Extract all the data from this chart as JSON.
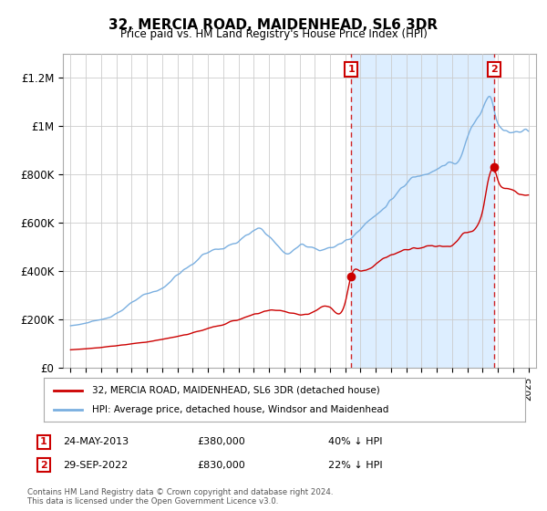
{
  "title": "32, MERCIA ROAD, MAIDENHEAD, SL6 3DR",
  "subtitle": "Price paid vs. HM Land Registry's House Price Index (HPI)",
  "background_color": "#ffffff",
  "grid_color": "#cccccc",
  "sale1_year": 2013.38,
  "sale1_price": 380000,
  "sale1_label": "24-MAY-2013",
  "sale1_pct": "40% ↓ HPI",
  "sale2_year": 2022.75,
  "sale2_price": 830000,
  "sale2_label": "29-SEP-2022",
  "sale2_pct": "22% ↓ HPI",
  "red_color": "#cc0000",
  "blue_color": "#7aafe0",
  "shade_color": "#ddeeff",
  "marker_box_color": "#cc0000",
  "legend_label_red": "32, MERCIA ROAD, MAIDENHEAD, SL6 3DR (detached house)",
  "legend_label_blue": "HPI: Average price, detached house, Windsor and Maidenhead",
  "footnote": "Contains HM Land Registry data © Crown copyright and database right 2024.\nThis data is licensed under the Open Government Licence v3.0.",
  "ylim": [
    0,
    1300000
  ],
  "xlim": [
    1994.5,
    2025.5
  ]
}
